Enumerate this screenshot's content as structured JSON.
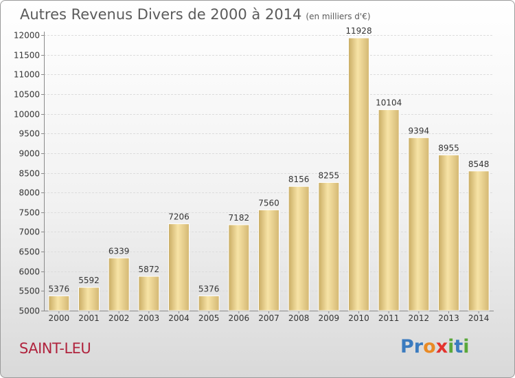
{
  "header": {
    "title": "Autres Revenus Divers de 2000 à 2014",
    "unit": "(en milliers d'€)"
  },
  "footer": {
    "town": "SAINT-LEU",
    "logo_letters": [
      "P",
      "r",
      "o",
      "x",
      "i",
      "t",
      "i"
    ]
  },
  "colors": {
    "bar_light": "#f7e3a6",
    "bar_dark": "#c9ac63",
    "title": "#5b5b5b",
    "town": "#b0233d",
    "logo": [
      "#3b7bbf",
      "#3b7bbf",
      "#e98a25",
      "#e3342f",
      "#5aa83a",
      "#3b7bbf",
      "#5aa83a"
    ]
  },
  "chart_data": {
    "type": "bar",
    "title": "Autres Revenus Divers de 2000 à 2014",
    "subtitle": "(en milliers d'€)",
    "categories": [
      "2000",
      "2001",
      "2002",
      "2003",
      "2004",
      "2005",
      "2006",
      "2007",
      "2008",
      "2009",
      "2010",
      "2011",
      "2012",
      "2013",
      "2014"
    ],
    "values": [
      5376,
      5592,
      6339,
      5872,
      7206,
      5376,
      7182,
      7560,
      8156,
      8255,
      11928,
      10104,
      9394,
      8955,
      8548
    ],
    "data_labels": [
      "5376",
      "5592",
      "6339",
      "5872",
      "7206",
      "5376",
      "7182",
      "7560",
      "8156",
      "8255",
      "11928",
      "10104",
      "9394",
      "8955",
      "8548"
    ],
    "ylim": [
      5000,
      12000
    ],
    "yticks": [
      5000,
      5500,
      6000,
      6500,
      7000,
      7500,
      8000,
      8500,
      9000,
      9500,
      10000,
      10500,
      11000,
      11500,
      12000
    ],
    "ytick_labels": [
      "5000",
      "5500",
      "6000",
      "6500",
      "7000",
      "7500",
      "8000",
      "8500",
      "9000",
      "9500",
      "10000",
      "10500",
      "11000",
      "11500",
      "12000"
    ],
    "grid": true,
    "legend": "none"
  }
}
